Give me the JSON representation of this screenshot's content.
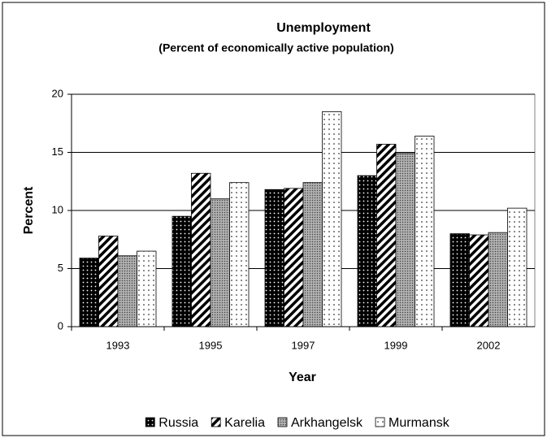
{
  "chart_data": {
    "type": "bar",
    "title": "Unemployment",
    "subtitle": "(Percent of economically active population)",
    "x_label": "Year",
    "y_label": "Percent",
    "categories": [
      "1993",
      "1995",
      "1997",
      "1999",
      "2002"
    ],
    "series": [
      {
        "name": "Russia",
        "color": "#000000",
        "pattern": "dots-dark",
        "values": [
          5.9,
          9.5,
          11.8,
          13.0,
          8.0
        ]
      },
      {
        "name": "Karelia",
        "color": "#000000",
        "pattern": "stripes",
        "values": [
          7.8,
          13.2,
          11.9,
          15.7,
          7.9
        ]
      },
      {
        "name": "Arkhangelsk",
        "color": "#808080",
        "pattern": "crosshatch",
        "values": [
          6.1,
          11.0,
          12.4,
          14.9,
          8.1
        ]
      },
      {
        "name": "Murmansk",
        "color": "#ffffff",
        "pattern": "dots-light",
        "values": [
          6.5,
          12.4,
          18.5,
          16.4,
          10.2
        ]
      }
    ],
    "ylim": [
      0,
      20
    ],
    "yticks": [
      0,
      5,
      10,
      15,
      20
    ],
    "grid": true,
    "legend": "bottom"
  }
}
